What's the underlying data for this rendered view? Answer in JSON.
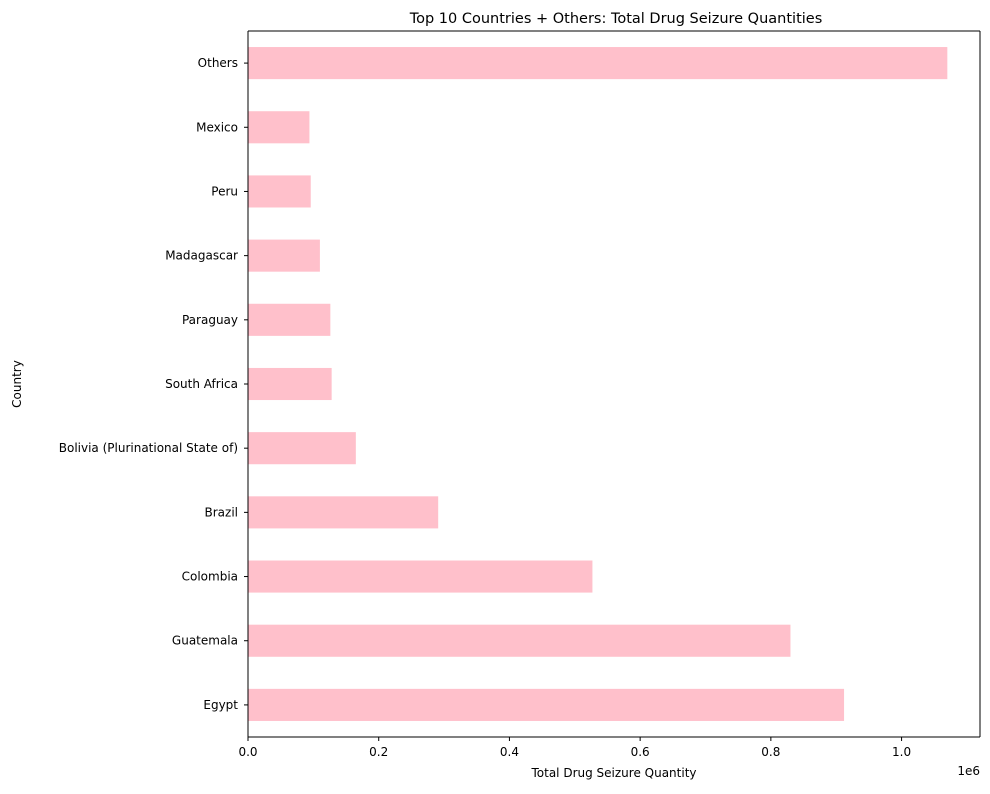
{
  "chart_data": {
    "type": "bar",
    "orientation": "horizontal",
    "title": "Top 10 Countries + Others: Total Drug Seizure Quantities",
    "xlabel": "Total Drug Seizure Quantity",
    "ylabel": "Country",
    "x_offset_label": "1e6",
    "categories": [
      "Egypt",
      "Guatemala",
      "Colombia",
      "Brazil",
      "Bolivia (Plurinational State of)",
      "South Africa",
      "Paraguay",
      "Madagascar",
      "Peru",
      "Mexico",
      "Others"
    ],
    "values": [
      912000,
      830000,
      527000,
      291000,
      165000,
      128000,
      126000,
      110000,
      96000,
      94000,
      1070000
    ],
    "xlim": [
      0,
      1120000
    ],
    "xticks": [
      0,
      200000,
      400000,
      600000,
      800000,
      1000000
    ],
    "xtick_labels": [
      "0.0",
      "0.2",
      "0.4",
      "0.6",
      "0.8",
      "1.0"
    ],
    "grid": false,
    "bar_color": "#ffc0cb"
  }
}
